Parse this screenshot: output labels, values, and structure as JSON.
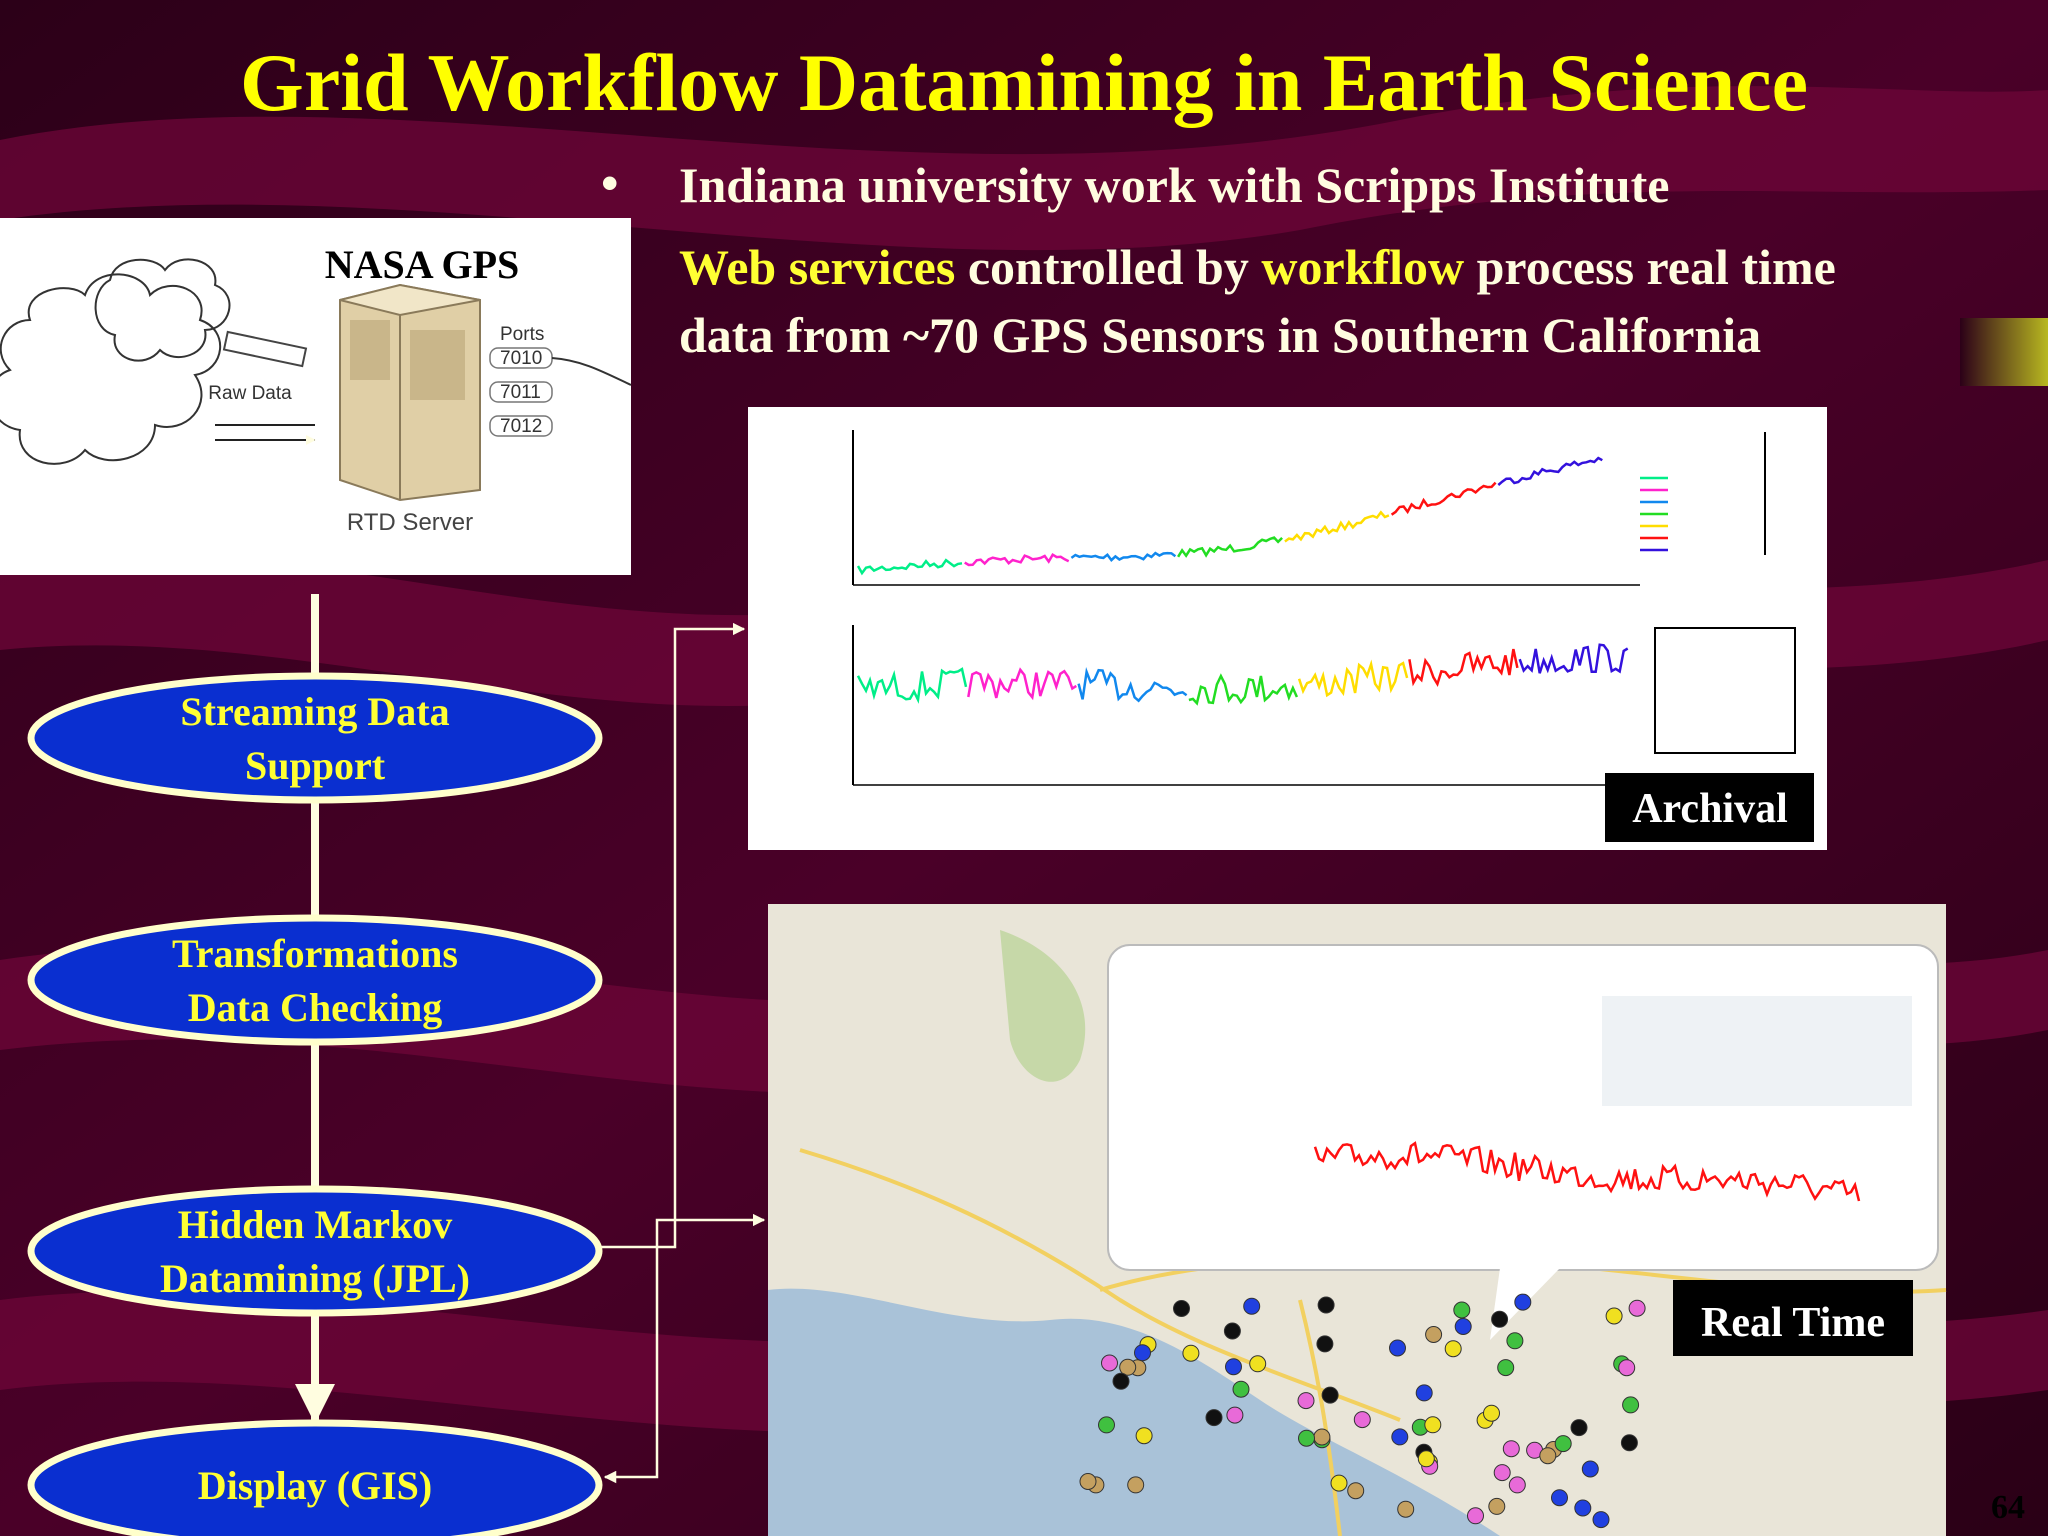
{
  "title": "Grid Workflow Datamining in Earth Science",
  "bullet": "Indiana university work with Scripps Institute",
  "description": {
    "line1": [
      "Web services",
      " controlled by ",
      "workflow",
      " process real time"
    ],
    "line2": "data from ~70 GPS Sensors in Southern California"
  },
  "server_diagram": {
    "title": "NASA GPS",
    "input_label": "Raw Data",
    "ports_label": "Ports",
    "ports": [
      "7010",
      "7011",
      "7012"
    ],
    "server_label": "RTD Server"
  },
  "workflow": {
    "nodes": [
      {
        "lines": [
          "Streaming Data",
          "Support"
        ]
      },
      {
        "lines": [
          "Transformations",
          "Data Checking"
        ]
      },
      {
        "lines": [
          "Hidden Markov",
          "Datamining (JPL)"
        ]
      },
      {
        "lines": [
          "Display (GIS)"
        ]
      }
    ]
  },
  "panels": {
    "archival": "Archival",
    "realtime": "Real Time"
  },
  "page_number": "64"
}
